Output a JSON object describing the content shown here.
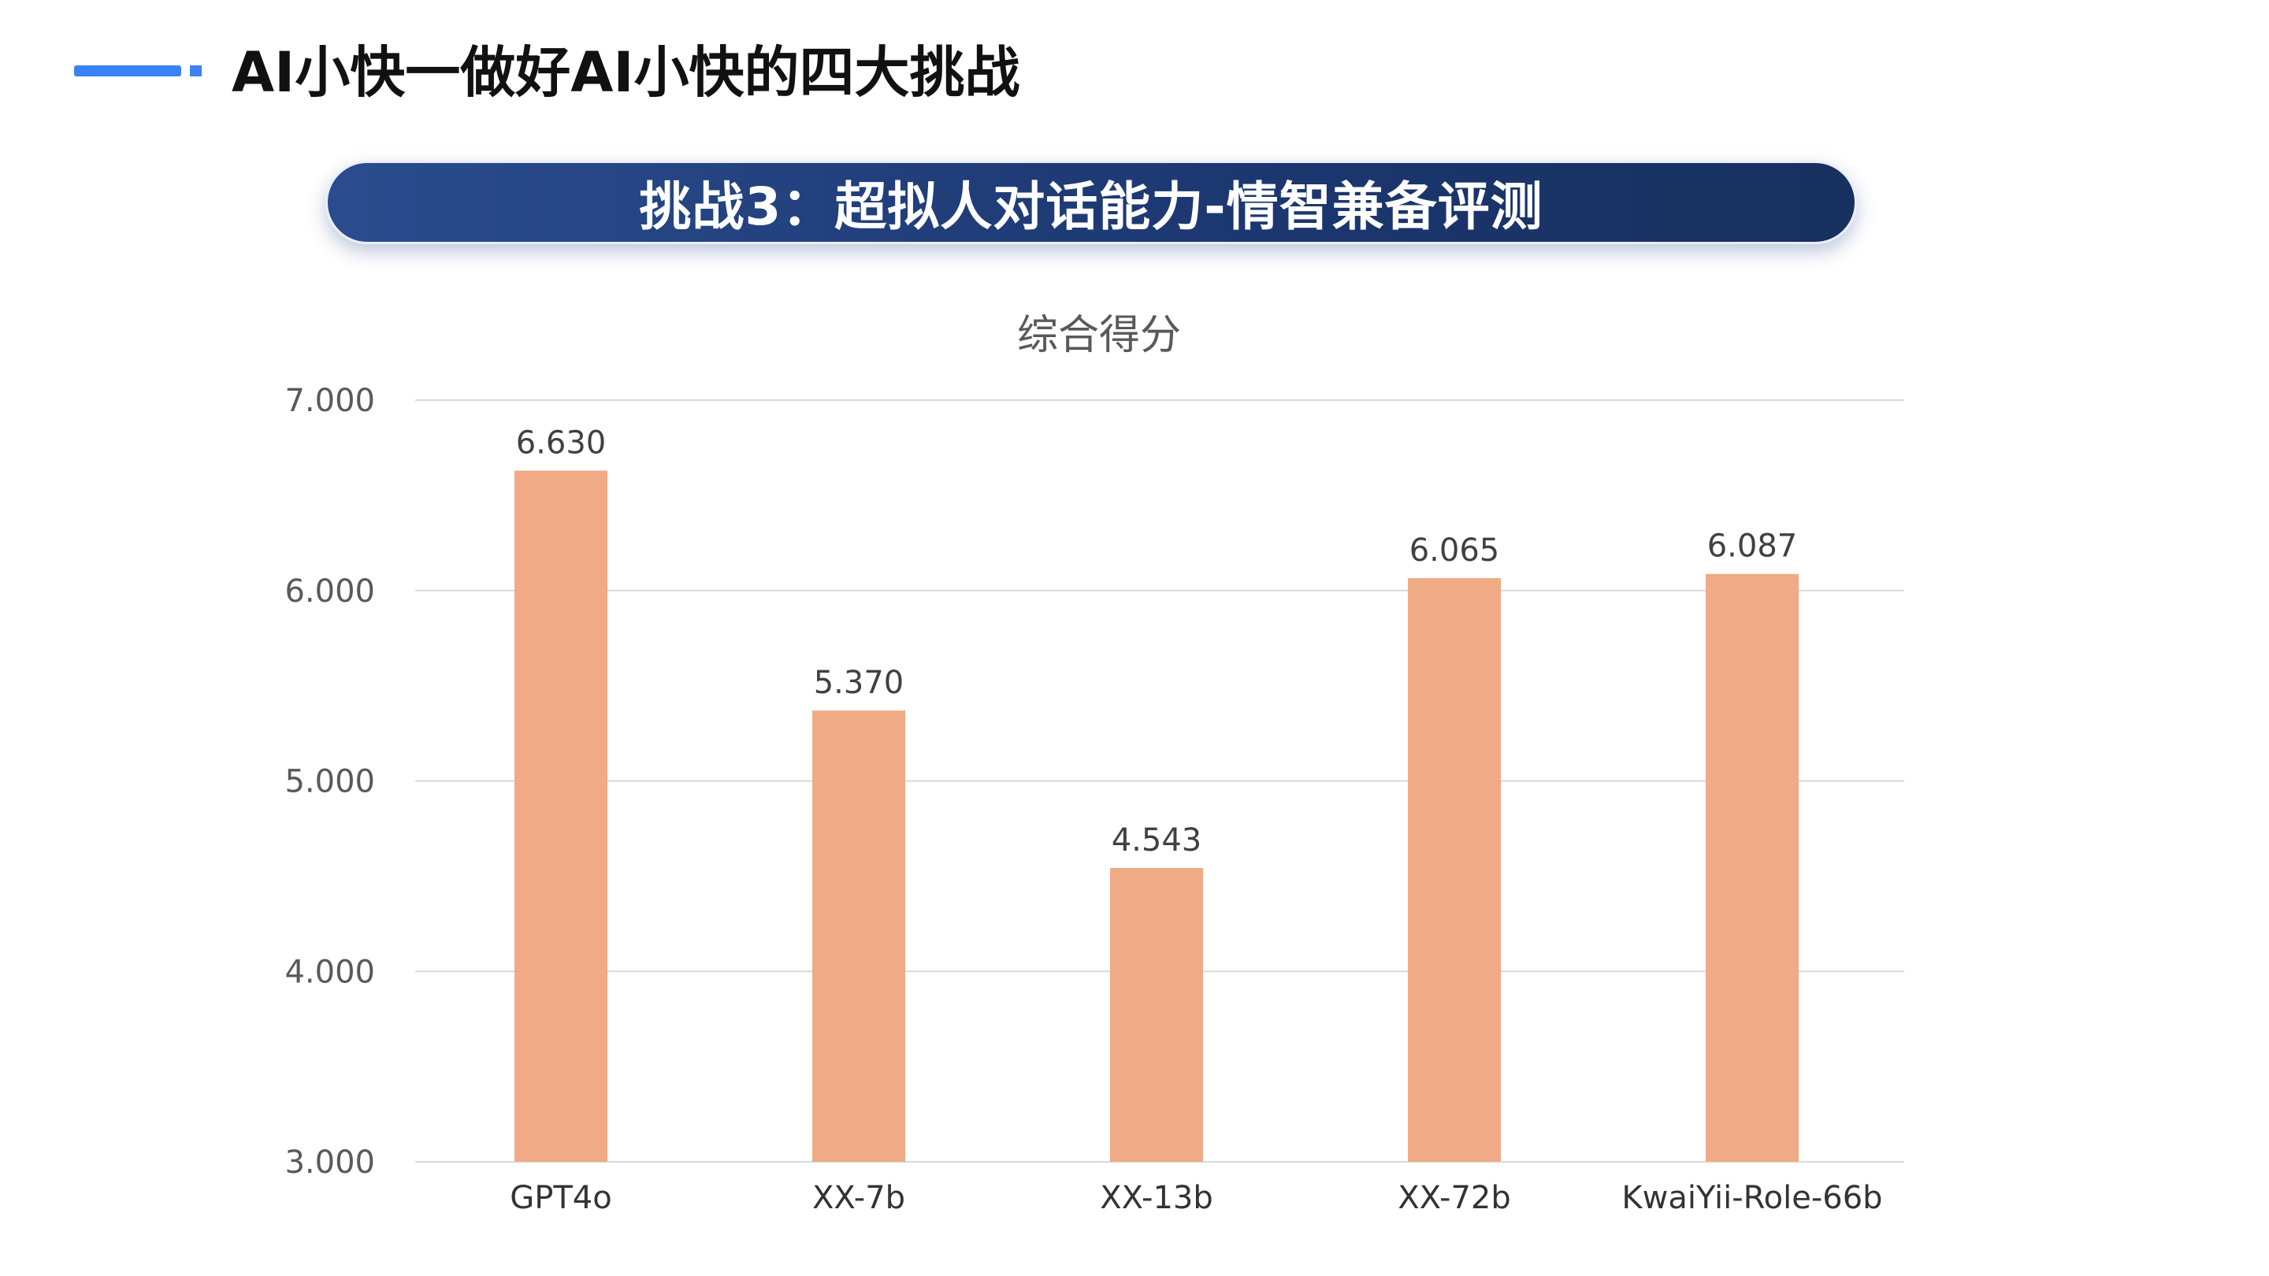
{
  "header": {
    "title": "AI小快一做好AI小快的四大挑战",
    "accent_color": "#3b82f6"
  },
  "banner": {
    "text": "挑战3：超拟人对话能力-情智兼备评测",
    "color": "#1f3b76"
  },
  "chart_data": {
    "type": "bar",
    "title": "综合得分",
    "xlabel": "",
    "ylabel": "",
    "categories": [
      "GPT4o",
      "XX-7b",
      "XX-13b",
      "XX-72b",
      "KwaiYii-Role-66b"
    ],
    "values": [
      6.63,
      5.37,
      4.543,
      6.065,
      6.087
    ],
    "value_labels": [
      "6.630",
      "5.370",
      "4.543",
      "6.065",
      "6.087"
    ],
    "ylim": [
      3.0,
      7.0
    ],
    "yticks": [
      3.0,
      4.0,
      5.0,
      6.0,
      7.0
    ],
    "ytick_labels": [
      "3.000",
      "4.000",
      "5.000",
      "6.000",
      "7.000"
    ],
    "grid": true,
    "legend": "none",
    "bar_color": "#f0aa85"
  }
}
